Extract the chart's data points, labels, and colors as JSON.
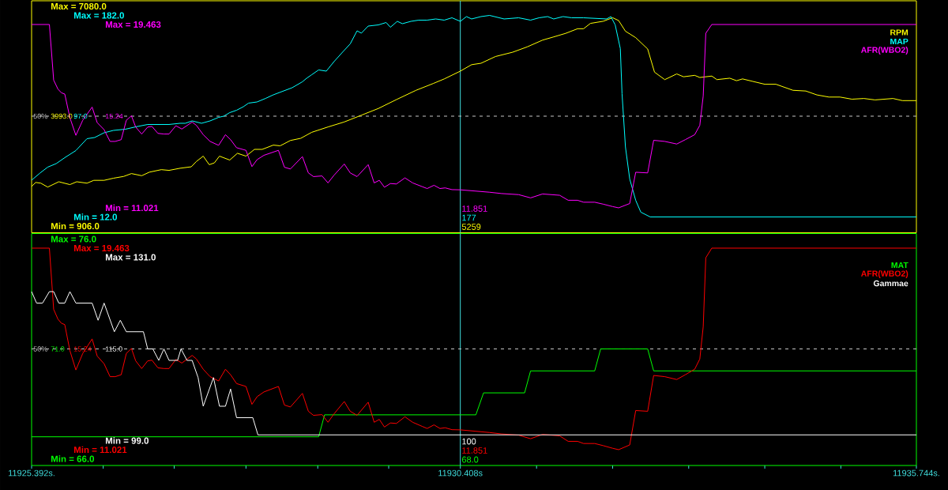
{
  "chart_data": [
    {
      "type": "line",
      "xlim": [
        11925.392,
        11935.744
      ],
      "ylim": [
        906,
        7080
      ],
      "yticks": [
        {
          "value": 7080,
          "label": "Max = 7080.0"
        },
        {
          "value": 3993,
          "label": "3993.0"
        },
        {
          "value": 906,
          "label": "Min = 906.0"
        }
      ],
      "y2lim": [
        12,
        182
      ],
      "y2ticks": [
        {
          "value": 182,
          "label": "Max = 182.0"
        },
        {
          "value": 97,
          "label": "97.0"
        },
        {
          "value": 12,
          "label": "Min = 12.0"
        }
      ],
      "y3lim": [
        11.021,
        19.463
      ],
      "y3ticks": [
        {
          "value": 19.463,
          "label": "Max = 19.463"
        },
        {
          "value": 15.242,
          "label": "15.24"
        },
        {
          "value": 11.021,
          "label": "Min = 11.021"
        }
      ],
      "tick_labels": "y",
      "legend": "top right",
      "ref_lines": [
        {
          "axis": "x",
          "value": 11930.408,
          "color": "#40e0e0"
        },
        {
          "axis": "y",
          "value": 3993,
          "color": "#c8c8c8",
          "line_style": "dashed"
        }
      ],
      "annotations": [
        {
          "text": "50%",
          "x": 11925.392,
          "y": 3993
        },
        "5259",
        "177",
        "11.851"
      ],
      "series": [
        {
          "name": "RPM",
          "color": "#ffff00",
          "x": [
            11925.392,
            11925.44,
            11925.5,
            11925.58,
            11925.71,
            11925.84,
            11925.92,
            11926.04,
            11926.12,
            11926.24,
            11926.35,
            11926.47,
            11926.56,
            11926.68,
            11926.77,
            11926.91,
            11927.0,
            11927.13,
            11927.26,
            11927.32,
            11927.4,
            11927.47,
            11927.53,
            11927.59,
            11927.71,
            11927.8,
            11927.9,
            11928.0,
            11928.09,
            11928.22,
            11928.3,
            11928.42,
            11928.54,
            11928.67,
            11928.86,
            11929.05,
            11929.25,
            11929.45,
            11929.67,
            11929.89,
            11930.09,
            11930.22,
            11930.408,
            11930.54,
            11930.65,
            11930.82,
            11931.02,
            11931.19,
            11931.37,
            11931.5,
            11931.64,
            11931.78,
            11931.85,
            11931.93,
            11932.08,
            11932.19,
            11932.26,
            11932.34,
            11932.46,
            11932.6,
            11932.68,
            11932.8,
            11932.94,
            11933.02,
            11933.15,
            11933.21,
            11933.35,
            11933.41,
            11933.56,
            11933.64,
            11933.71,
            11933.83,
            11933.97,
            11934.1,
            11934.3,
            11934.45,
            11934.58,
            11934.72,
            11934.85,
            11934.99,
            11935.13,
            11935.26,
            11935.47,
            11935.58,
            11935.744
          ],
          "values": [
            2020,
            2130,
            2110,
            2000,
            2150,
            2070,
            2150,
            2110,
            2190,
            2190,
            2250,
            2300,
            2380,
            2320,
            2420,
            2490,
            2470,
            2530,
            2570,
            2720,
            2870,
            2630,
            2680,
            2870,
            2760,
            2950,
            2870,
            3060,
            3060,
            3180,
            3160,
            3310,
            3370,
            3540,
            3690,
            3830,
            4020,
            4210,
            4470,
            4720,
            4910,
            5040,
            5259,
            5440,
            5480,
            5670,
            5790,
            5940,
            6130,
            6220,
            6320,
            6450,
            6450,
            6600,
            6660,
            6760,
            6680,
            6380,
            6200,
            5880,
            5230,
            5020,
            5180,
            5100,
            5140,
            5080,
            5120,
            5020,
            5060,
            4990,
            5040,
            4970,
            4890,
            4890,
            4720,
            4700,
            4590,
            4530,
            4530,
            4470,
            4490,
            4450,
            4490,
            4430,
            4430
          ]
        },
        {
          "name": "MAP",
          "color": "#00ffff",
          "axis": "y2",
          "x": [
            11925.392,
            11925.49,
            11925.58,
            11925.68,
            11925.78,
            11925.91,
            11926.04,
            11926.13,
            11926.24,
            11926.35,
            11926.49,
            11926.61,
            11926.75,
            11926.87,
            11927.0,
            11927.13,
            11927.19,
            11927.27,
            11927.38,
            11927.48,
            11927.58,
            11927.64,
            11927.71,
            11927.79,
            11927.87,
            11927.93,
            11928.03,
            11928.13,
            11928.22,
            11928.44,
            11928.56,
            11928.61,
            11928.67,
            11928.75,
            11928.84,
            11928.93,
            11929.03,
            11929.12,
            11929.2,
            11929.25,
            11929.33,
            11929.45,
            11929.54,
            11929.59,
            11929.67,
            11929.73,
            11929.83,
            11929.92,
            11930.02,
            11930.12,
            11930.22,
            11930.31,
            11930.408,
            11930.48,
            11930.54,
            11930.65,
            11930.75,
            11930.92,
            11931.09,
            11931.23,
            11931.33,
            11931.43,
            11931.5,
            11931.61,
            11931.71,
            11931.85,
            11932.12,
            11932.17,
            11932.22,
            11932.28,
            11932.3,
            11932.34,
            11932.39,
            11932.46,
            11932.52,
            11932.63,
            11935.744
          ],
          "values": [
            43,
            49,
            54,
            57,
            62,
            68,
            78,
            79,
            83,
            85,
            86,
            88,
            90,
            90,
            90,
            91,
            91,
            93,
            91,
            93,
            96,
            97,
            100,
            102,
            105,
            108,
            109,
            112,
            115,
            121,
            126,
            129,
            132,
            136,
            135,
            143,
            151,
            158,
            169,
            167,
            173,
            174,
            176,
            172,
            177,
            175,
            177,
            178,
            178,
            179,
            178,
            180,
            177,
            181,
            179,
            181,
            182,
            179,
            180,
            178,
            180,
            181,
            179,
            181,
            180,
            180,
            179,
            181,
            174,
            154,
            116,
            71,
            44,
            26,
            16,
            12,
            12
          ]
        },
        {
          "name": "AFR(WBO2)",
          "color": "#ff00ff",
          "axis": "y3",
          "x": [
            11925.392,
            11925.6,
            11925.65,
            11925.7,
            11925.74,
            11925.78,
            11925.84,
            11925.91,
            11925.99,
            11926.1,
            11926.16,
            11926.24,
            11926.31,
            11926.37,
            11926.44,
            11926.5,
            11926.56,
            11926.61,
            11926.68,
            11926.75,
            11926.8,
            11926.87,
            11926.94,
            11927.0,
            11927.08,
            11927.15,
            11927.27,
            11927.32,
            11927.4,
            11927.48,
            11927.58,
            11927.66,
            11927.72,
            11927.79,
            11927.9,
            11927.97,
            11928.03,
            11928.11,
            11928.28,
            11928.35,
            11928.42,
            11928.56,
            11928.63,
            11928.69,
            11928.79,
            11928.86,
            11928.93,
            11929.05,
            11929.12,
            11929.2,
            11929.33,
            11929.4,
            11929.46,
            11929.52,
            11929.59,
            11929.66,
            11929.76,
            11929.85,
            11929.96,
            11930.02,
            11930.1,
            11930.17,
            11930.23,
            11930.31,
            11930.408,
            11930.75,
            11930.89,
            11931.09,
            11931.23,
            11931.37,
            11931.57,
            11931.67,
            11931.78,
            11931.85,
            11931.98,
            11932.08,
            11932.19,
            11932.26,
            11932.39,
            11932.46,
            11932.6,
            11932.67,
            11932.8,
            11932.94,
            11933.04,
            11933.15,
            11933.21,
            11933.25,
            11933.28,
            11933.35,
            11935.744
          ],
          "values": [
            19.463,
            19.463,
            16.9,
            16.49,
            16.32,
            16.26,
            15.17,
            14.36,
            15.05,
            15.66,
            14.94,
            14.62,
            14.08,
            14.08,
            14.16,
            15.05,
            15.26,
            14.74,
            14.42,
            14.74,
            14.77,
            14.45,
            14.42,
            14.42,
            14.8,
            14.65,
            14.97,
            14.82,
            14.39,
            14.08,
            13.9,
            14.39,
            14.16,
            13.79,
            13.67,
            12.92,
            13.24,
            13.44,
            13.67,
            12.89,
            12.81,
            13.38,
            12.63,
            12.46,
            12.49,
            12.17,
            12.52,
            13.04,
            12.63,
            12.46,
            13.01,
            12.17,
            12.29,
            11.97,
            12.14,
            12.12,
            12.4,
            12.17,
            12.0,
            11.91,
            12.06,
            11.91,
            11.94,
            11.86,
            11.851,
            11.74,
            11.68,
            11.63,
            11.48,
            11.66,
            11.6,
            11.37,
            11.37,
            11.28,
            11.28,
            11.19,
            11.08,
            11.021,
            11.22,
            12.66,
            12.63,
            14.13,
            14.08,
            13.96,
            14.16,
            14.39,
            14.82,
            16.18,
            19.06,
            19.463,
            19.463
          ]
        }
      ]
    },
    {
      "type": "line",
      "xlim": [
        11925.392,
        11935.744
      ],
      "xticks": [
        {
          "value": 11925.392,
          "label": "11925.392s."
        },
        {
          "value": 11926.23,
          "label": null
        },
        {
          "value": 11927.06,
          "label": null
        },
        {
          "value": 11927.9,
          "label": null
        },
        {
          "value": 11928.74,
          "label": null
        },
        {
          "value": 11929.57,
          "label": null
        },
        {
          "value": 11930.408,
          "label": "11930.408s"
        },
        {
          "value": 11931.3,
          "label": null
        },
        {
          "value": 11932.19,
          "label": null
        },
        {
          "value": 11933.08,
          "label": null
        },
        {
          "value": 11933.97,
          "label": null
        },
        {
          "value": 11934.86,
          "label": null
        },
        {
          "value": 11935.744,
          "label": "11935.744s."
        }
      ],
      "ylim": [
        66,
        76
      ],
      "yticks": [
        {
          "value": 76,
          "label": "Max = 76.0"
        },
        {
          "value": 71,
          "label": "71.0"
        },
        {
          "value": 66,
          "label": "Min = 66.0"
        }
      ],
      "y2lim": [
        11.021,
        19.463
      ],
      "y2ticks": [
        {
          "value": 19.463,
          "label": "Max = 19.463"
        },
        {
          "value": 15.242,
          "label": "15.24"
        },
        {
          "value": 11.021,
          "label": "Min = 11.021"
        }
      ],
      "y3lim": [
        99,
        131
      ],
      "y3ticks": [
        {
          "value": 131,
          "label": "Max = 131.0"
        },
        {
          "value": 115,
          "label": "115.0"
        },
        {
          "value": 99,
          "label": "Min = 99.0"
        }
      ],
      "legend": "top right",
      "ref_lines": [
        {
          "axis": "x",
          "value": 11930.408,
          "color": "#40e0e0"
        },
        {
          "axis": "y",
          "value": 71,
          "color": "#c8c8c8",
          "line_style": "dashed"
        }
      ],
      "annotations": [
        {
          "text": "50%",
          "x": 11925.392,
          "y": 71
        },
        "68.0",
        "11.851",
        "100"
      ],
      "series": [
        {
          "name": "MAT",
          "color": "#00ff00",
          "x": [
            11925.392,
            11928.75,
            11928.82,
            11930.408,
            11930.59,
            11930.68,
            11931.16,
            11931.23,
            11931.98,
            11932.05,
            11932.6,
            11932.67,
            11935.744
          ],
          "values": [
            67,
            67,
            68,
            68,
            68,
            69,
            69,
            70,
            70,
            71,
            71,
            70,
            70
          ]
        },
        {
          "name": "AFR(WBO2)",
          "color": "#ff0000",
          "axis": "y2",
          "x": [
            11925.392,
            11925.6,
            11925.65,
            11925.7,
            11925.74,
            11925.78,
            11925.84,
            11925.91,
            11925.99,
            11926.1,
            11926.16,
            11926.24,
            11926.31,
            11926.37,
            11926.44,
            11926.5,
            11926.56,
            11926.61,
            11926.68,
            11926.75,
            11926.8,
            11926.87,
            11926.94,
            11927.0,
            11927.08,
            11927.15,
            11927.27,
            11927.32,
            11927.4,
            11927.48,
            11927.58,
            11927.66,
            11927.72,
            11927.79,
            11927.9,
            11927.97,
            11928.03,
            11928.11,
            11928.28,
            11928.35,
            11928.42,
            11928.56,
            11928.63,
            11928.69,
            11928.79,
            11928.86,
            11928.93,
            11929.05,
            11929.12,
            11929.2,
            11929.33,
            11929.4,
            11929.46,
            11929.52,
            11929.59,
            11929.66,
            11929.76,
            11929.85,
            11929.96,
            11930.02,
            11930.1,
            11930.17,
            11930.23,
            11930.31,
            11930.408,
            11930.75,
            11930.89,
            11931.09,
            11931.23,
            11931.37,
            11931.57,
            11931.67,
            11931.78,
            11931.85,
            11931.98,
            11932.08,
            11932.19,
            11932.26,
            11932.39,
            11932.46,
            11932.6,
            11932.67,
            11932.8,
            11932.94,
            11933.04,
            11933.15,
            11933.21,
            11933.25,
            11933.28,
            11933.35,
            11935.744
          ],
          "values": [
            19.463,
            19.463,
            16.9,
            16.49,
            16.32,
            16.26,
            15.17,
            14.36,
            15.05,
            15.66,
            14.94,
            14.62,
            14.08,
            14.08,
            14.16,
            15.05,
            15.26,
            14.74,
            14.42,
            14.74,
            14.77,
            14.45,
            14.42,
            14.42,
            14.8,
            14.65,
            14.97,
            14.82,
            14.39,
            14.08,
            13.9,
            14.39,
            14.16,
            13.79,
            13.67,
            12.92,
            13.24,
            13.44,
            13.67,
            12.89,
            12.81,
            13.38,
            12.63,
            12.46,
            12.49,
            12.17,
            12.52,
            13.04,
            12.63,
            12.46,
            13.01,
            12.17,
            12.29,
            11.97,
            12.14,
            12.12,
            12.4,
            12.17,
            12.0,
            11.91,
            12.06,
            11.91,
            11.94,
            11.86,
            11.851,
            11.74,
            11.68,
            11.63,
            11.48,
            11.66,
            11.6,
            11.37,
            11.37,
            11.28,
            11.28,
            11.19,
            11.08,
            11.021,
            11.22,
            12.66,
            12.63,
            14.13,
            14.08,
            13.96,
            14.16,
            14.39,
            14.82,
            16.18,
            19.06,
            19.463,
            19.463
          ]
        },
        {
          "name": "Gammae",
          "color": "#ffffff",
          "axis": "y3",
          "x": [
            11925.392,
            11925.45,
            11925.52,
            11925.6,
            11925.65,
            11925.71,
            11925.78,
            11925.84,
            11925.91,
            11926.1,
            11926.17,
            11926.24,
            11926.36,
            11926.43,
            11926.5,
            11926.7,
            11926.75,
            11926.81,
            11926.88,
            11926.94,
            11927.0,
            11927.1,
            11927.14,
            11927.21,
            11927.27,
            11927.34,
            11927.4,
            11927.52,
            11927.59,
            11927.66,
            11927.72,
            11927.79,
            11927.98,
            11928.04,
            11930.408,
            11935.744
          ],
          "values": [
            125,
            123,
            123,
            125,
            125,
            123,
            123,
            125,
            123,
            123,
            120,
            123,
            118,
            120,
            118,
            118,
            115,
            115,
            113,
            115,
            113,
            113,
            115,
            113,
            113,
            110,
            105,
            110,
            105,
            105,
            108,
            103,
            103,
            100,
            100,
            100
          ]
        }
      ]
    }
  ]
}
